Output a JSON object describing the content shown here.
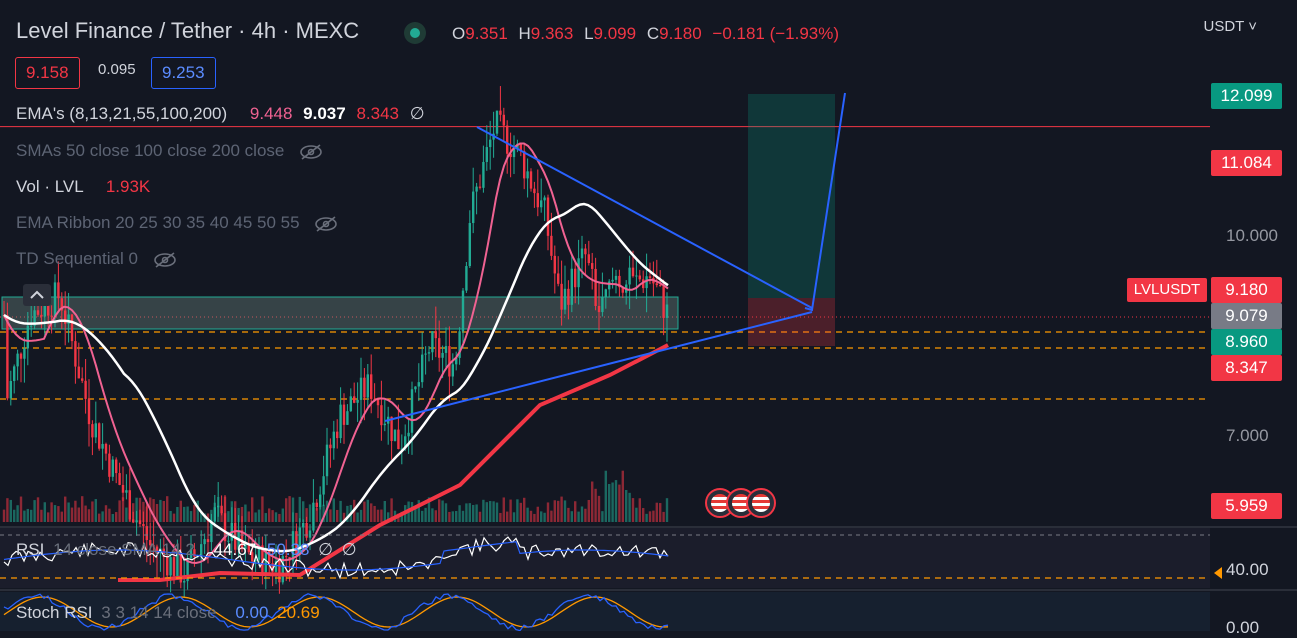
{
  "header": {
    "title": "Level Finance / Tether · 4h · MEXC",
    "ohlc": [
      {
        "k": "O",
        "v": "9.351"
      },
      {
        "k": "H",
        "v": "9.363"
      },
      {
        "k": "L",
        "v": "9.099"
      },
      {
        "k": "C",
        "v": "9.180"
      },
      {
        "k": "",
        "v": "−0.181 (−1.93%)"
      }
    ],
    "currency": "USDT ˅"
  },
  "trade": {
    "bid": "9.158",
    "spread": "0.095",
    "ask": "9.253"
  },
  "indicators": {
    "ema": {
      "name": "EMA's (8,13,21,55,100,200)",
      "v1": "9.448",
      "v2": "9.037",
      "v3": "8.343",
      "v4": "∅"
    },
    "sma": "SMAs 50 close 100 close 200 close",
    "vol": {
      "name": "Vol · LVL",
      "value": "1.93K"
    },
    "ribbon": "EMA Ribbon 20 25 30 35 40 45 50 55",
    "td": "TD Sequential 0"
  },
  "price_scale": {
    "p12099": "12.099",
    "p11084": "11.084",
    "p10000": "10.000",
    "p9180": "9.180",
    "p9079": "9.079",
    "p8960": "8.960",
    "p8347": "8.347",
    "p7000": "7.000",
    "p5959": "5.959",
    "symbol": "LVLUSDT"
  },
  "rsi": {
    "name": "RSI",
    "params": "14 close SMA 14 2",
    "v1": "44.67",
    "v2": "50.38",
    "v3": "∅",
    "v4": "∅",
    "scale": "40.00"
  },
  "stoch": {
    "name": "Stoch RSI",
    "params": "3 3 14 14 close",
    "v1": "0.00",
    "v2": "20.69",
    "scale": "0.00"
  },
  "colors": {
    "up": "#22ab94",
    "down": "#f23645",
    "bg": "#131722",
    "accent": "#2962ff"
  }
}
